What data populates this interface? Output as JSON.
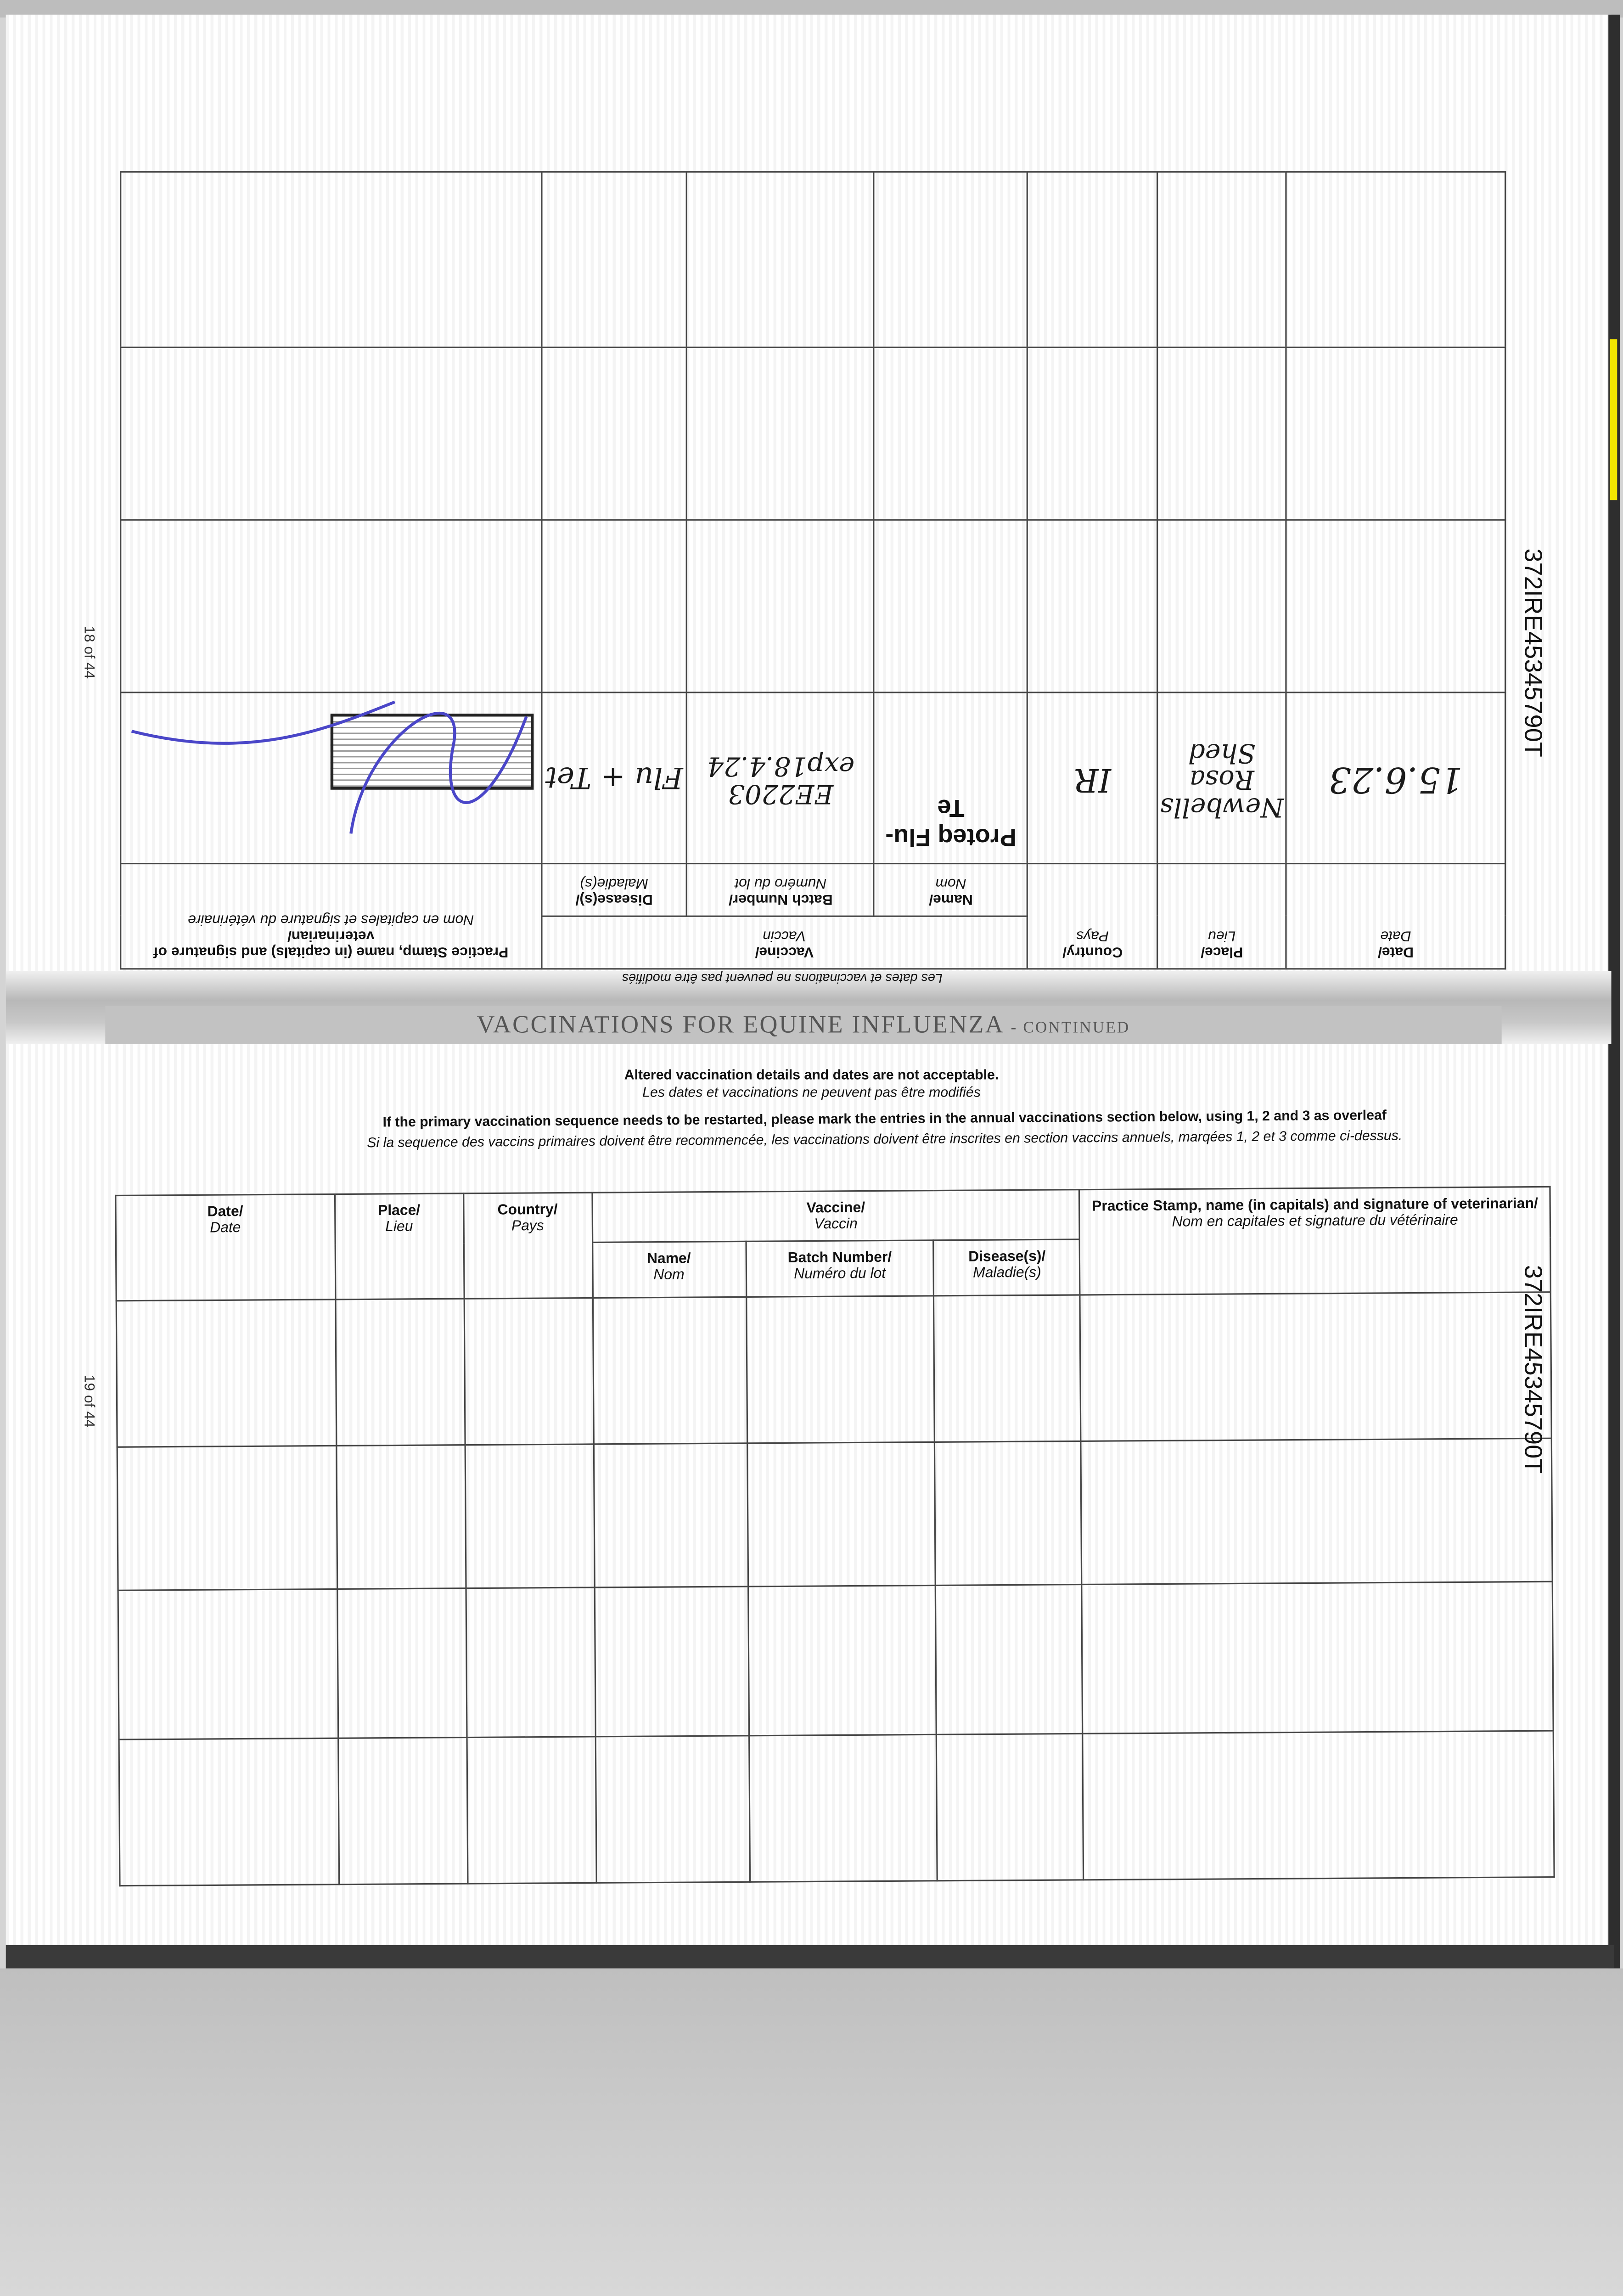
{
  "document": {
    "section_title": "VACCINATIONS FOR EQUINE INFLUENZA",
    "section_suffix": "- CONTINUED",
    "passport_id": "372IRE45345790T",
    "pages": {
      "upper": "18 of 44",
      "lower": "19 of 44"
    },
    "notice": {
      "altered_en": "Altered vaccination details and dates are not acceptable.",
      "altered_fr": "Les dates et vaccinations ne peuvent pas être modifiés",
      "restart_en": "If the primary vaccination sequence needs to be restarted, please mark the entries in the annual vaccinations section below, using 1, 2 and 3 as overleaf",
      "restart_fr": "Si la sequence des vaccins primaires doivent être recommencée, les vaccinations doivent être inscrites en section vaccins annuels, marqées 1, 2 et 3 comme ci-dessus."
    },
    "headers": {
      "date": "Date/",
      "date_fr": "Date",
      "place": "Place/",
      "place_fr": "Lieu",
      "country": "Country/",
      "country_fr": "Pays",
      "vaccine": "Vaccine/",
      "vaccine_fr": "Vaccin",
      "name": "Name/",
      "name_fr": "Nom",
      "batch": "Batch Number/",
      "batch_fr": "Numéro du lot",
      "disease": "Disease(s)/",
      "disease_fr": "Maladie(s)",
      "stamp": "Practice Stamp, name (in capitals) and signature of veterinarian/",
      "stamp_fr": "Nom en capitales et signature du vétérinaire"
    },
    "upper_entries": [
      {
        "date": "15.6.23",
        "place": "Newbells Rosa Shed",
        "country": "IR",
        "name": "Proteq Flu-Te",
        "batch": "EE2203 exp18.4.24",
        "disease": "Flu + Tet"
      }
    ],
    "colors": {
      "signature": "#4a46c8",
      "section_band": "#c2c2c2"
    }
  }
}
